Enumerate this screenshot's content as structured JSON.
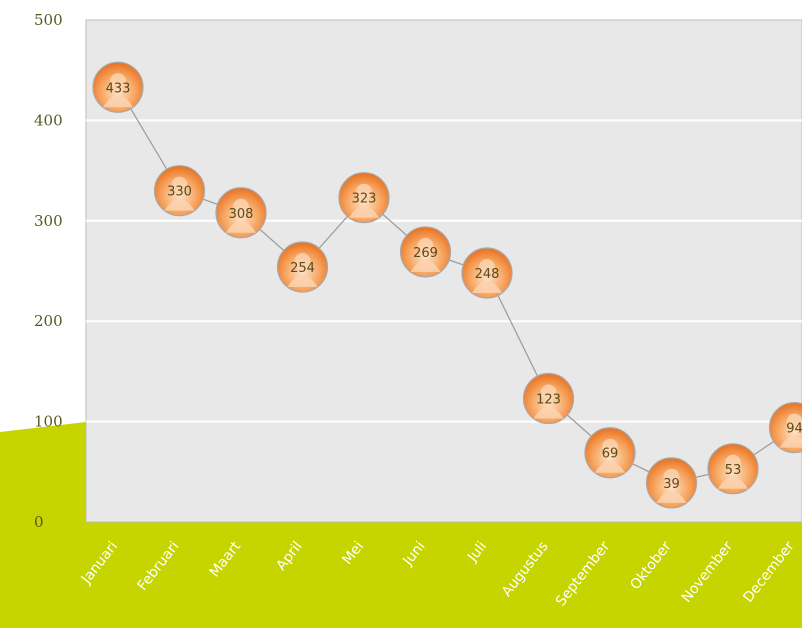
{
  "colors": {
    "plot_background": "#e8e8e8",
    "gridline": "#ffffff",
    "ground": "#c6d400",
    "text": "#555a20",
    "line": "#9a9a9a",
    "marker_outer": "#e9772a",
    "marker_inner": "#f7b98a",
    "marker_label": "#5b4a1a"
  },
  "chart_data": {
    "type": "line",
    "categories": [
      "Januari",
      "Februari",
      "Maart",
      "April",
      "Mei",
      "Juni",
      "Juli",
      "Augustus",
      "September",
      "Oktober",
      "November",
      "December"
    ],
    "series": [
      {
        "values": [
          433,
          330,
          308,
          254,
          323,
          269,
          248,
          123,
          69,
          39,
          53,
          94
        ],
        "labels": [
          "433",
          "330",
          "308",
          "254",
          "323",
          "269",
          "248",
          "123",
          "69",
          "39",
          "53",
          "94"
        ],
        "marker": "person-avatar-icon"
      }
    ],
    "yticks": [
      "0",
      "100",
      "200",
      "300",
      "400",
      "500"
    ],
    "ylim": [
      0,
      500
    ],
    "grid": true,
    "title": "",
    "xlabel": "",
    "ylabel": ""
  }
}
